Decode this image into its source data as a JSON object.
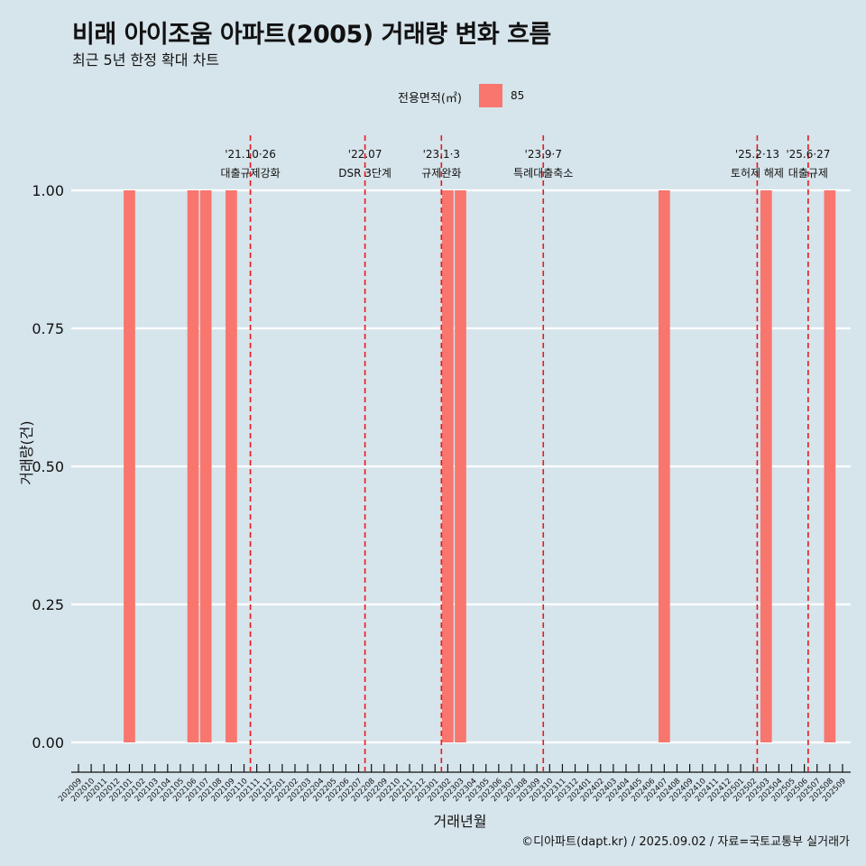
{
  "title": "비래 아이조움 아파트(2005) 거래량 변화 흐름",
  "subtitle": "최근 5년 한정 확대 차트",
  "caption": "©디아파트(dapt.kr) / 2025.09.02 / 자료=국토교통부 실거래가",
  "legend": {
    "title": "전용면적(㎡)",
    "label": "85",
    "color": "#f8766d"
  },
  "chart_data": {
    "type": "bar",
    "xlabel": "거래년월",
    "ylabel": "거래량(건)",
    "ylim": [
      0,
      1
    ],
    "yticks": [
      "0.00",
      "0.25",
      "0.50",
      "0.75",
      "1.00"
    ],
    "categories": [
      "202009",
      "202010",
      "202011",
      "202012",
      "202101",
      "202102",
      "202103",
      "202104",
      "202105",
      "202106",
      "202107",
      "202108",
      "202109",
      "202110",
      "202111",
      "202112",
      "202201",
      "202202",
      "202203",
      "202204",
      "202205",
      "202206",
      "202207",
      "202208",
      "202209",
      "202210",
      "202211",
      "202212",
      "202301",
      "202302",
      "202303",
      "202304",
      "202305",
      "202306",
      "202307",
      "202308",
      "202309",
      "202310",
      "202311",
      "202312",
      "202401",
      "202402",
      "202403",
      "202404",
      "202405",
      "202406",
      "202407",
      "202408",
      "202409",
      "202410",
      "202411",
      "202412",
      "202501",
      "202502",
      "202503",
      "202504",
      "202505",
      "202506",
      "202507",
      "202508",
      "202509"
    ],
    "series": [
      {
        "name": "85",
        "values": [
          0,
          0,
          0,
          0,
          1,
          0,
          0,
          0,
          0,
          1,
          1,
          0,
          1,
          0,
          0,
          0,
          0,
          0,
          0,
          0,
          0,
          0,
          0,
          0,
          0,
          0,
          0,
          0,
          0,
          1,
          1,
          0,
          0,
          0,
          0,
          0,
          0,
          0,
          0,
          0,
          0,
          0,
          0,
          0,
          0,
          0,
          1,
          0,
          0,
          0,
          0,
          0,
          0,
          0,
          1,
          0,
          0,
          0,
          0,
          1,
          0
        ]
      }
    ],
    "events": [
      {
        "pos": 13.5,
        "date": "'21.10·26",
        "label": "대출규제강화"
      },
      {
        "pos": 22.5,
        "date": "'22.07",
        "label": "DSR 3단계"
      },
      {
        "pos": 28.5,
        "date": "'23.1·3",
        "label": "규제완화"
      },
      {
        "pos": 36.5,
        "date": "'23.9·7",
        "label": "특례대출축소"
      },
      {
        "pos": 53.3,
        "date": "'25.2·13",
        "label": "토허제 해제"
      },
      {
        "pos": 57.3,
        "date": "'25.6·27",
        "label": "대출규제"
      }
    ]
  }
}
